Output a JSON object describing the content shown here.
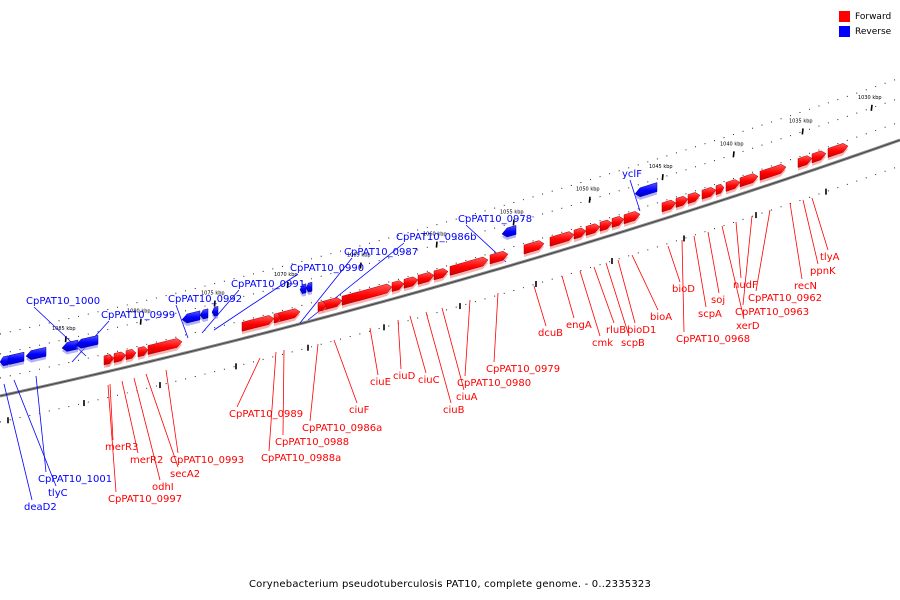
{
  "legend": {
    "forward": {
      "label": "Forward",
      "color": "#ff0000"
    },
    "reverse": {
      "label": "Reverse",
      "color": "#0000ff"
    }
  },
  "caption": "Corynebacterium pseudotuberculosis PAT10, complete genome. - 0..2335323",
  "ticks": [
    "1030 kbp",
    "1035 kbp",
    "1040 kbp",
    "1045 kbp",
    "1050 kbp",
    "1055 kbp",
    "1060 kbp",
    "1065 kbp",
    "1070 kbp",
    "1075 kbp",
    "1080 kbp",
    "1085 kbp"
  ],
  "genes": [
    {
      "name": "tlyA",
      "strand": "forward"
    },
    {
      "name": "ppnK",
      "strand": "forward"
    },
    {
      "name": "recN",
      "strand": "forward"
    },
    {
      "name": "CpPAT10_0962",
      "strand": "forward"
    },
    {
      "name": "CpPAT10_0963",
      "strand": "forward"
    },
    {
      "name": "nudF",
      "strand": "forward"
    },
    {
      "name": "xerD",
      "strand": "forward"
    },
    {
      "name": "soj",
      "strand": "forward"
    },
    {
      "name": "scpA",
      "strand": "forward"
    },
    {
      "name": "CpPAT10_0968",
      "strand": "forward"
    },
    {
      "name": "bioD",
      "strand": "forward"
    },
    {
      "name": "bioA",
      "strand": "forward"
    },
    {
      "name": "bioD1",
      "strand": "forward"
    },
    {
      "name": "scpB",
      "strand": "forward"
    },
    {
      "name": "rluB",
      "strand": "forward"
    },
    {
      "name": "cmk",
      "strand": "forward"
    },
    {
      "name": "engA",
      "strand": "forward"
    },
    {
      "name": "dcuB",
      "strand": "forward"
    },
    {
      "name": "yclF",
      "strand": "reverse"
    },
    {
      "name": "CpPAT10_0978",
      "strand": "reverse"
    },
    {
      "name": "CpPAT10_0979",
      "strand": "forward"
    },
    {
      "name": "CpPAT10_0980",
      "strand": "forward"
    },
    {
      "name": "ciuA",
      "strand": "forward"
    },
    {
      "name": "ciuB",
      "strand": "forward"
    },
    {
      "name": "ciuC",
      "strand": "forward"
    },
    {
      "name": "ciuD",
      "strand": "forward"
    },
    {
      "name": "ciuE",
      "strand": "forward"
    },
    {
      "name": "ciuF",
      "strand": "forward"
    },
    {
      "name": "CpPAT10_0986a",
      "strand": "forward"
    },
    {
      "name": "CpPAT10_0986b",
      "strand": "reverse"
    },
    {
      "name": "CpPAT10_0987",
      "strand": "reverse"
    },
    {
      "name": "CpPAT10_0988",
      "strand": "forward"
    },
    {
      "name": "CpPAT10_0988a",
      "strand": "forward"
    },
    {
      "name": "CpPAT10_0989",
      "strand": "forward"
    },
    {
      "name": "CpPAT10_0990",
      "strand": "reverse"
    },
    {
      "name": "CpPAT10_0991",
      "strand": "reverse"
    },
    {
      "name": "CpPAT10_0992",
      "strand": "reverse"
    },
    {
      "name": "CpPAT10_0993",
      "strand": "forward"
    },
    {
      "name": "secA2",
      "strand": "forward"
    },
    {
      "name": "odhI",
      "strand": "forward"
    },
    {
      "name": "merR2",
      "strand": "forward"
    },
    {
      "name": "merR3",
      "strand": "forward"
    },
    {
      "name": "CpPAT10_0997",
      "strand": "forward"
    },
    {
      "name": "CpPAT10_0999",
      "strand": "reverse"
    },
    {
      "name": "CpPAT10_1000",
      "strand": "reverse"
    },
    {
      "name": "CpPAT10_1001",
      "strand": "reverse"
    },
    {
      "name": "tlyC",
      "strand": "reverse"
    },
    {
      "name": "deaD2",
      "strand": "reverse"
    }
  ]
}
